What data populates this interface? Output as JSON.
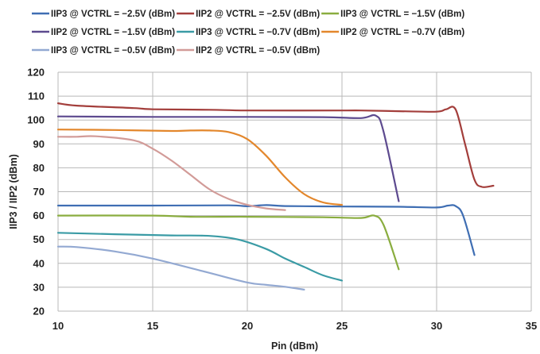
{
  "chart_data": {
    "type": "line",
    "title": "",
    "xlabel": "Pin (dBm)",
    "ylabel": "IIP3 / IIP2  (dBm)",
    "xlim": [
      10,
      35
    ],
    "ylim": [
      20,
      120
    ],
    "xticks": [
      "10",
      "15",
      "20",
      "25",
      "30",
      "35"
    ],
    "yticks": [
      "20",
      "30",
      "40",
      "50",
      "60",
      "70",
      "80",
      "90",
      "100",
      "110",
      "120"
    ],
    "grid": true,
    "legend_position": "top",
    "series": [
      {
        "name": "IIP3 @ VCTRL = −2.5V (dBm)",
        "color": "#3f6eb3",
        "points": [
          [
            10,
            64.2
          ],
          [
            15,
            64.2
          ],
          [
            19,
            64.3
          ],
          [
            20,
            63.9
          ],
          [
            21,
            64.4
          ],
          [
            22,
            64.0
          ],
          [
            25,
            63.8
          ],
          [
            28,
            63.7
          ],
          [
            30,
            63.4
          ],
          [
            30.6,
            64.2
          ],
          [
            31,
            64.0
          ],
          [
            31.4,
            60
          ],
          [
            32,
            43.5
          ]
        ]
      },
      {
        "name": "IIP2 @ VCTRL = −2.5V (dBm)",
        "color": "#a33e3b",
        "points": [
          [
            10,
            107
          ],
          [
            11,
            106
          ],
          [
            14,
            105
          ],
          [
            15,
            104.5
          ],
          [
            18,
            104.3
          ],
          [
            20,
            104
          ],
          [
            25,
            104
          ],
          [
            26,
            104
          ],
          [
            28,
            103.7
          ],
          [
            30,
            103.5
          ],
          [
            30.5,
            104.5
          ],
          [
            31,
            104.5
          ],
          [
            31.5,
            90
          ],
          [
            32,
            75
          ],
          [
            32.4,
            72
          ],
          [
            33,
            72.5
          ]
        ]
      },
      {
        "name": "IIP3 @ VCTRL = −1.5V (dBm)",
        "color": "#8aad3f",
        "points": [
          [
            10,
            60
          ],
          [
            15,
            60
          ],
          [
            17,
            59.5
          ],
          [
            20,
            59.5
          ],
          [
            24,
            59.3
          ],
          [
            26,
            59
          ],
          [
            26.7,
            60
          ],
          [
            27.2,
            56
          ],
          [
            28,
            37.5
          ]
        ]
      },
      {
        "name": "IIP2 @ VCTRL = −1.5V (dBm)",
        "color": "#5d4a8f",
        "points": [
          [
            10,
            101.5
          ],
          [
            15,
            101.3
          ],
          [
            20,
            101.3
          ],
          [
            24,
            101.2
          ],
          [
            26,
            100.8
          ],
          [
            26.8,
            101.8
          ],
          [
            27.2,
            95
          ],
          [
            28,
            66
          ]
        ]
      },
      {
        "name": "IIP3 @ VCTRL = −0.7V (dBm)",
        "color": "#3a9ba5",
        "points": [
          [
            10,
            52.8
          ],
          [
            13,
            52.2
          ],
          [
            16,
            51.7
          ],
          [
            18,
            51.5
          ],
          [
            19.5,
            50
          ],
          [
            21,
            46
          ],
          [
            22,
            42
          ],
          [
            23,
            38.5
          ],
          [
            24,
            35
          ],
          [
            25,
            32.8
          ]
        ]
      },
      {
        "name": "IIP2 @ VCTRL = −0.7V (dBm)",
        "color": "#e3872c",
        "points": [
          [
            10,
            96
          ],
          [
            13,
            95.8
          ],
          [
            16,
            95.4
          ],
          [
            17,
            95.6
          ],
          [
            18,
            95.6
          ],
          [
            19,
            95
          ],
          [
            20,
            92
          ],
          [
            21,
            85
          ],
          [
            22,
            76
          ],
          [
            23,
            69
          ],
          [
            24,
            65.5
          ],
          [
            25,
            64.5
          ]
        ]
      },
      {
        "name": "IIP3 @ VCTRL = −0.5V (dBm)",
        "color": "#93a9d2",
        "points": [
          [
            10,
            47
          ],
          [
            11,
            46.8
          ],
          [
            13,
            45
          ],
          [
            15,
            42
          ],
          [
            18,
            36
          ],
          [
            20,
            32
          ],
          [
            21,
            31
          ],
          [
            22,
            30.2
          ],
          [
            23,
            29
          ]
        ]
      },
      {
        "name": "IIP2 @ VCTRL = −0.5V (dBm)",
        "color": "#d29b98",
        "points": [
          [
            10,
            93
          ],
          [
            11,
            93
          ],
          [
            12,
            93.2
          ],
          [
            14,
            91.5
          ],
          [
            15,
            88
          ],
          [
            16,
            83
          ],
          [
            17,
            77
          ],
          [
            18,
            71
          ],
          [
            19,
            67
          ],
          [
            20,
            64.5
          ],
          [
            21,
            63
          ],
          [
            22,
            62.3
          ]
        ]
      }
    ]
  }
}
